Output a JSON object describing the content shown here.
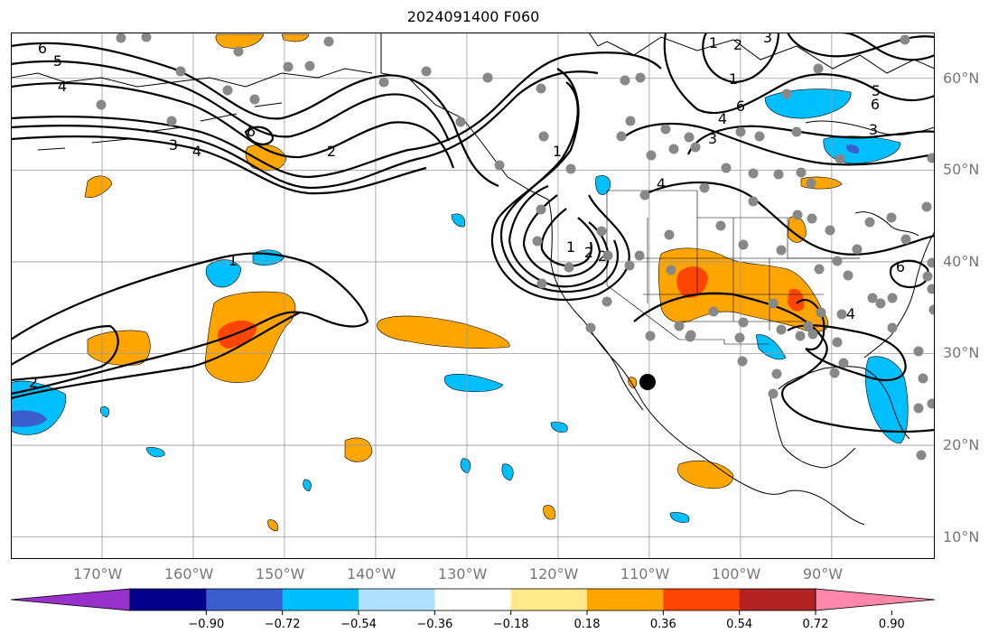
{
  "title": "2024091400 F060",
  "lat_labels": [
    "60°N",
    "50°N",
    "40°N",
    "30°N",
    "20°N",
    "10°N"
  ],
  "lon_labels": [
    "170°W",
    "160°W",
    "150°W",
    "140°W",
    "130°W",
    "120°W",
    "110°W",
    "100°W",
    "90°W"
  ],
  "colorbar": {
    "colors": [
      "#9932CC",
      "#00008B",
      "#3A5FCD",
      "#00BFFF",
      "#B0E2FF",
      "#FFFFFF",
      "#FFE98A",
      "#FFA500",
      "#FF4500",
      "#B22222",
      "#FF88AA"
    ],
    "tick_labels": [
      "−0.90",
      "−0.72",
      "−0.54",
      "−0.36",
      "−0.18",
      "0.18",
      "0.36",
      "0.54",
      "0.72",
      "0.90"
    ]
  },
  "contour_labels": [
    "6",
    "5",
    "4",
    "3",
    "4",
    "6",
    "2",
    "1",
    "1",
    "2",
    "3",
    "4",
    "6",
    "1",
    "2",
    "3",
    "5",
    "6",
    "3",
    "4",
    "6",
    "4",
    "1",
    "2",
    "2",
    "1"
  ],
  "map_features": {
    "projection": "plate-carree",
    "gridlines": true,
    "stations": "gray-dots",
    "highlight_marker": "black-dot"
  }
}
